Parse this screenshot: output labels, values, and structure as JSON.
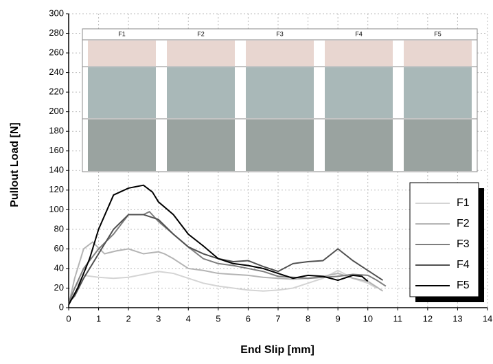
{
  "chart_data": {
    "type": "line",
    "xlabel": "End Slip [mm]",
    "ylabel": "Pullout Load [N]",
    "xlim": [
      0,
      14
    ],
    "xticks": [
      0,
      1,
      2,
      3,
      4,
      5,
      6,
      7,
      8,
      9,
      10,
      11,
      12,
      13,
      14
    ],
    "ylim": [
      0,
      300
    ],
    "yticks": [
      0,
      20,
      40,
      60,
      80,
      100,
      120,
      140,
      160,
      180,
      200,
      220,
      240,
      260,
      280,
      300
    ],
    "grid": true,
    "legend": "lower right",
    "inset_labels": [
      "F1",
      "F2",
      "F3",
      "F4",
      "F5"
    ],
    "series": [
      {
        "name": "F1",
        "color": "#d4d4d4",
        "x": [
          0,
          0.2,
          0.5,
          1,
          1.5,
          2,
          2.5,
          3,
          3.5,
          4,
          4.5,
          5,
          5.5,
          6,
          6.5,
          7,
          7.5,
          8,
          8.5,
          9,
          9.5,
          10,
          10.3
        ],
        "values": [
          3,
          20,
          33,
          31,
          30,
          31,
          34,
          37,
          35,
          30,
          25,
          22,
          20,
          18,
          17,
          18,
          20,
          25,
          30,
          38,
          30,
          25,
          20
        ]
      },
      {
        "name": "F2",
        "color": "#b4b4b4",
        "x": [
          0,
          0.2,
          0.5,
          0.8,
          1.2,
          1.6,
          2,
          2.5,
          3,
          3.2,
          3.5,
          4,
          4.5,
          5,
          5.5,
          6,
          6.5,
          7,
          7.5,
          8,
          8.5,
          9,
          9.5,
          10,
          10.5
        ],
        "values": [
          3,
          30,
          60,
          67,
          55,
          58,
          60,
          55,
          57,
          55,
          50,
          40,
          38,
          35,
          34,
          33,
          31,
          30,
          29,
          30,
          32,
          35,
          30,
          27,
          17
        ]
      },
      {
        "name": "F3",
        "color": "#7e7e7e",
        "x": [
          0,
          0.2,
          0.5,
          1,
          1.5,
          2,
          2.5,
          2.7,
          3,
          3.5,
          4,
          4.5,
          5,
          5.5,
          6,
          6.5,
          7,
          7.5,
          8,
          8.5,
          9,
          9.5,
          10,
          10.3,
          10.6
        ],
        "values": [
          5,
          20,
          40,
          60,
          75,
          95,
          95,
          98,
          88,
          75,
          62,
          50,
          45,
          43,
          40,
          37,
          32,
          31,
          30,
          31,
          32,
          34,
          33,
          28,
          22
        ]
      },
      {
        "name": "F4",
        "color": "#505050",
        "x": [
          0,
          0.2,
          0.5,
          1,
          1.5,
          2,
          2.5,
          3,
          3.5,
          4,
          4.5,
          5,
          5.5,
          6,
          6.5,
          7,
          7.5,
          8,
          8.5,
          9,
          9.5,
          10,
          10.5
        ],
        "values": [
          5,
          12,
          30,
          55,
          80,
          95,
          95,
          90,
          75,
          62,
          55,
          50,
          47,
          48,
          42,
          37,
          45,
          47,
          48,
          60,
          48,
          38,
          28
        ]
      },
      {
        "name": "F5",
        "color": "#000000",
        "x": [
          0,
          0.3,
          0.7,
          1,
          1.5,
          2,
          2.5,
          2.8,
          3,
          3.5,
          4,
          4.5,
          5,
          5.5,
          6,
          6.5,
          7,
          7.5,
          8,
          8.5,
          9,
          9.5,
          9.8,
          10
        ],
        "values": [
          3,
          20,
          50,
          80,
          115,
          122,
          125,
          118,
          108,
          95,
          75,
          63,
          50,
          45,
          43,
          40,
          35,
          30,
          33,
          32,
          28,
          33,
          32,
          27
        ]
      }
    ]
  }
}
